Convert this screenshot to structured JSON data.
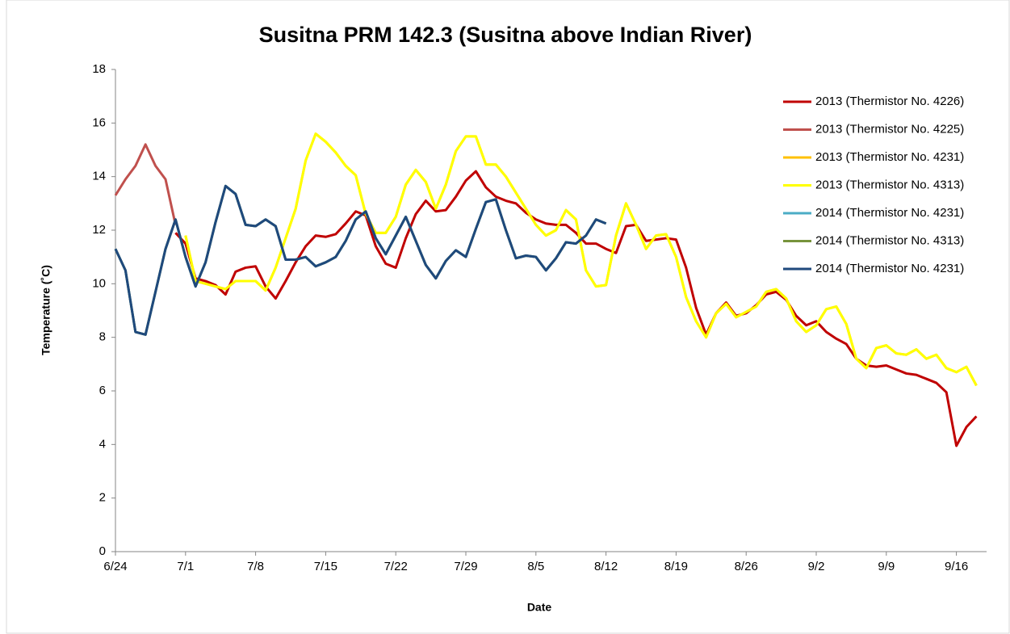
{
  "chart_data": {
    "type": "line",
    "title": "Susitna PRM 142.3 (Susitna above Indian River)",
    "x_label": "Date",
    "y_label": "Temperature (˚C)",
    "categories": [
      "6/24",
      null,
      null,
      null,
      null,
      null,
      null,
      "7/1",
      null,
      null,
      null,
      null,
      null,
      null,
      "7/8",
      null,
      null,
      null,
      null,
      null,
      null,
      "7/15",
      null,
      null,
      null,
      null,
      null,
      null,
      "7/22",
      null,
      null,
      null,
      null,
      null,
      null,
      "7/29",
      null,
      null,
      null,
      null,
      null,
      null,
      "8/5",
      null,
      null,
      null,
      null,
      null,
      null,
      "8/12",
      null,
      null,
      null,
      null,
      null,
      null,
      "8/19",
      null,
      null,
      null,
      null,
      null,
      null,
      "8/26",
      null,
      null,
      null,
      null,
      null,
      null,
      "9/2",
      null,
      null,
      null,
      null,
      null,
      null,
      "9/9",
      null,
      null,
      null,
      null,
      null,
      null,
      "9/16",
      null,
      null
    ],
    "ylim": [
      0,
      18
    ],
    "yticks": [
      0,
      2,
      4,
      6,
      8,
      10,
      12,
      14,
      16,
      18
    ],
    "legend": "right",
    "series": [
      {
        "name": "2013 (Thermistor No. 4226)",
        "color": "#c00000",
        "values": [
          null,
          null,
          null,
          null,
          null,
          null,
          11.9,
          11.5,
          10.2,
          10.1,
          9.95,
          9.6,
          10.45,
          10.6,
          10.65,
          9.9,
          9.45,
          10.1,
          10.8,
          11.4,
          11.8,
          11.75,
          11.85,
          12.25,
          12.7,
          12.55,
          11.4,
          10.75,
          10.6,
          11.7,
          12.6,
          13.1,
          12.7,
          12.75,
          13.25,
          13.85,
          14.2,
          13.6,
          13.25,
          13.1,
          13.0,
          12.65,
          12.4,
          12.25,
          12.2,
          12.2,
          11.9,
          11.5,
          11.5,
          11.3,
          11.15,
          12.15,
          12.2,
          11.6,
          11.65,
          11.7,
          11.65,
          10.6,
          9.1,
          8.1,
          8.9,
          9.3,
          8.8,
          8.9,
          9.2,
          9.6,
          9.7,
          9.4,
          8.8,
          8.45,
          8.6,
          8.2,
          7.95,
          7.75,
          7.2,
          6.95,
          6.9,
          6.95,
          6.8,
          6.65,
          6.6,
          6.45,
          6.3,
          5.95,
          3.95,
          4.65,
          5.05
        ]
      },
      {
        "name": "2013 (Thermistor No. 4225)",
        "color": "#c0504d",
        "values": [
          13.3,
          13.9,
          14.4,
          15.2,
          14.4,
          13.9,
          12.2,
          null,
          null,
          null,
          null,
          null,
          null,
          null,
          null,
          null,
          null,
          null,
          null,
          null,
          null,
          null,
          null,
          null,
          null,
          null,
          null,
          null,
          null,
          null,
          null,
          null,
          null,
          null,
          null,
          null,
          null,
          null,
          null,
          null,
          null,
          null,
          null,
          null,
          null,
          null,
          null,
          null,
          null,
          null,
          null,
          null,
          null,
          null,
          null,
          null,
          null,
          null,
          null,
          null,
          null,
          null,
          null,
          null,
          null,
          null,
          null,
          null,
          null,
          null,
          null,
          null,
          null,
          null,
          null,
          null,
          null,
          null,
          null,
          null,
          null,
          null,
          null,
          null,
          null,
          null,
          null
        ]
      },
      {
        "name": "2013 (Thermistor No. 4231)",
        "color": "#ffc000",
        "values": [
          null,
          null,
          null,
          null,
          null,
          null,
          null,
          11.8,
          10.1,
          10.0,
          9.9,
          9.8,
          10.1,
          10.1,
          10.1,
          9.75,
          10.6,
          11.7,
          12.8,
          14.6,
          15.6,
          15.3,
          14.9,
          14.4,
          14.05,
          12.6,
          11.9,
          11.9,
          12.5,
          13.7,
          14.25,
          13.8,
          12.8,
          13.7,
          14.95,
          15.5,
          15.5,
          14.45,
          14.45,
          14.0,
          13.4,
          12.8,
          12.2,
          11.8,
          12.0,
          12.75,
          12.4,
          10.5,
          9.9,
          9.95,
          11.8,
          13.0,
          12.2,
          11.3,
          11.8,
          11.85,
          11.0,
          9.5,
          8.6,
          8.0,
          8.9,
          9.25,
          8.75,
          8.95,
          9.15,
          9.7,
          9.8,
          9.45,
          8.6,
          8.2,
          8.45,
          9.05,
          9.15,
          8.5,
          7.2,
          6.85,
          7.6,
          7.7,
          7.4,
          7.35,
          7.55,
          7.2,
          7.35,
          6.85,
          6.7,
          6.9,
          6.2
        ]
      },
      {
        "name": "2013 (Thermistor No. 4313)",
        "color": "#ffff00",
        "values": [
          null,
          null,
          null,
          null,
          null,
          null,
          null,
          11.8,
          10.1,
          10.0,
          9.9,
          9.8,
          10.1,
          10.1,
          10.1,
          9.75,
          10.6,
          11.7,
          12.8,
          14.6,
          15.6,
          15.3,
          14.9,
          14.4,
          14.05,
          12.6,
          11.9,
          11.9,
          12.5,
          13.7,
          14.25,
          13.8,
          12.8,
          13.7,
          14.95,
          15.5,
          15.5,
          14.45,
          14.45,
          14.0,
          13.4,
          12.8,
          12.2,
          11.8,
          12.0,
          12.75,
          12.4,
          10.5,
          9.9,
          9.95,
          11.8,
          13.0,
          12.2,
          11.3,
          11.8,
          11.85,
          11.0,
          9.5,
          8.6,
          8.0,
          8.9,
          9.25,
          8.75,
          8.95,
          9.15,
          9.7,
          9.8,
          9.45,
          8.6,
          8.2,
          8.45,
          9.05,
          9.15,
          8.5,
          7.2,
          6.85,
          7.6,
          7.7,
          7.4,
          7.35,
          7.55,
          7.2,
          7.35,
          6.85,
          6.7,
          6.9,
          6.2
        ]
      },
      {
        "name": "2014 (Thermistor No. 4231)",
        "color": "#4bacc6",
        "values": [
          11.3,
          10.5,
          8.2,
          8.1,
          9.7,
          11.3,
          12.4,
          11.0,
          9.9,
          10.8,
          12.3,
          13.65,
          13.35,
          12.2,
          12.15,
          12.4,
          12.15,
          10.9,
          10.9,
          11.0,
          10.65,
          10.8,
          11.0,
          11.6,
          12.4,
          12.7,
          11.7,
          11.1,
          11.8,
          12.5,
          11.6,
          10.7,
          10.2,
          10.85,
          11.25,
          11.0,
          12.05,
          13.05,
          13.15,
          12.0,
          10.95,
          11.05,
          11.0,
          10.5,
          10.95,
          11.55,
          11.5,
          11.8,
          12.4,
          12.25,
          null,
          null,
          null,
          null,
          null,
          null,
          null,
          null,
          null,
          null,
          null,
          null,
          null,
          null,
          null,
          null,
          null,
          null,
          null,
          null,
          null,
          null,
          null,
          null,
          null,
          null,
          null,
          null,
          null,
          null,
          null,
          null,
          null,
          null,
          null,
          null,
          null
        ]
      },
      {
        "name": "2014 (Thermistor No. 4313)",
        "color": "#77933c",
        "values": [
          11.3,
          10.5,
          8.2,
          8.1,
          9.7,
          11.3,
          12.4,
          11.0,
          9.9,
          10.8,
          12.3,
          13.65,
          13.35,
          12.2,
          12.15,
          12.4,
          12.15,
          10.9,
          10.9,
          11.0,
          10.65,
          10.8,
          11.0,
          11.6,
          12.4,
          12.7,
          11.7,
          11.1,
          11.8,
          12.5,
          11.6,
          10.7,
          10.2,
          10.85,
          11.25,
          11.0,
          12.05,
          13.05,
          13.15,
          12.0,
          10.95,
          11.05,
          11.0,
          10.5,
          10.95,
          11.55,
          11.5,
          11.8,
          12.4,
          12.25,
          null,
          null,
          null,
          null,
          null,
          null,
          null,
          null,
          null,
          null,
          null,
          null,
          null,
          null,
          null,
          null,
          null,
          null,
          null,
          null,
          null,
          null,
          null,
          null,
          null,
          null,
          null,
          null,
          null,
          null,
          null,
          null,
          null,
          null,
          null,
          null,
          null
        ]
      },
      {
        "name": "2014 (Thermistor No. 4231)",
        "color": "#1f497d",
        "values": [
          11.3,
          10.5,
          8.2,
          8.1,
          9.7,
          11.3,
          12.4,
          11.0,
          9.9,
          10.8,
          12.3,
          13.65,
          13.35,
          12.2,
          12.15,
          12.4,
          12.15,
          10.9,
          10.9,
          11.0,
          10.65,
          10.8,
          11.0,
          11.6,
          12.4,
          12.7,
          11.7,
          11.1,
          11.8,
          12.5,
          11.6,
          10.7,
          10.2,
          10.85,
          11.25,
          11.0,
          12.05,
          13.05,
          13.15,
          12.0,
          10.95,
          11.05,
          11.0,
          10.5,
          10.95,
          11.55,
          11.5,
          11.8,
          12.4,
          12.25,
          null,
          null,
          null,
          null,
          null,
          null,
          null,
          null,
          null,
          null,
          null,
          null,
          null,
          null,
          null,
          null,
          null,
          null,
          null,
          null,
          null,
          null,
          null,
          null,
          null,
          null,
          null,
          null,
          null,
          null,
          null,
          null,
          null,
          null,
          null,
          null,
          null
        ]
      }
    ]
  }
}
